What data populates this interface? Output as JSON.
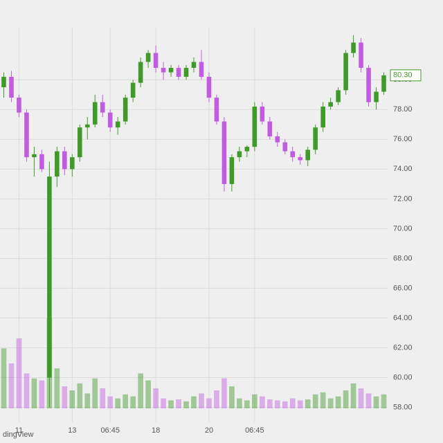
{
  "chart_data": {
    "type": "candlestick",
    "categories": [
      null,
      null,
      "11",
      null,
      null,
      null,
      null,
      null,
      null,
      "13",
      null,
      null,
      null,
      null,
      "06:45",
      null,
      null,
      null,
      null,
      null,
      "18",
      null,
      null,
      null,
      null,
      null,
      null,
      "20",
      null,
      null,
      null,
      null,
      null,
      "06:45",
      null,
      null,
      null,
      null,
      null,
      null,
      null,
      null,
      null,
      null,
      null,
      null,
      null,
      null,
      null,
      null,
      null
    ],
    "open": [
      79.5,
      80.2,
      78.8,
      77.8,
      74.8,
      75,
      60,
      73.5,
      75.2,
      74,
      74.8,
      76.8,
      77,
      78.5,
      77.8,
      76.8,
      77.2,
      78.8,
      79.8,
      81.2,
      81.8,
      80.8,
      80.5,
      80.8,
      80.2,
      80.8,
      81.2,
      80.2,
      78.8,
      77.2,
      73,
      74.8,
      75.2,
      75.5,
      78.2,
      77.2,
      76.2,
      75.8,
      75.2,
      74.8,
      74.6,
      75.3,
      76.8,
      78.2,
      78.5,
      79.3,
      81.8,
      82.5,
      80.8,
      78.5,
      79.2
    ],
    "high": [
      80.5,
      80.6,
      79,
      78,
      75.5,
      75.3,
      74.5,
      75.5,
      75.5,
      75,
      77,
      77.5,
      79,
      79,
      78,
      77.5,
      79,
      80,
      81.5,
      82,
      82.3,
      81.2,
      81,
      81,
      81,
      81.5,
      82,
      80.5,
      79,
      77.5,
      75,
      75.5,
      75.6,
      78.5,
      78.5,
      77.5,
      76.5,
      76,
      75.5,
      75,
      75.5,
      77,
      78.5,
      78.8,
      79.5,
      82,
      83,
      82.8,
      81,
      79.5,
      80.5
    ],
    "low": [
      78.8,
      78.5,
      77.5,
      74.5,
      73.5,
      73.8,
      58,
      72.8,
      73.6,
      73.5,
      74.5,
      76,
      76.8,
      77.5,
      76.5,
      76.3,
      77,
      78.5,
      79.5,
      80.8,
      80.5,
      80,
      80.2,
      80,
      80,
      80.5,
      80,
      78.5,
      77,
      72.5,
      72.5,
      74.5,
      74.8,
      75.2,
      77,
      76,
      75.5,
      75,
      74.5,
      74.3,
      74.2,
      75,
      76.5,
      78,
      78.3,
      79,
      81.5,
      80.5,
      78.2,
      78,
      79
    ],
    "close": [
      80.2,
      78.8,
      77.8,
      74.8,
      75,
      74,
      73.5,
      75.2,
      74,
      74.8,
      76.8,
      77,
      78.5,
      77.8,
      76.8,
      77.2,
      78.8,
      79.8,
      81.2,
      81.8,
      80.8,
      80.5,
      80.8,
      80.2,
      80.8,
      81.2,
      80.2,
      78.8,
      77.2,
      73,
      74.8,
      75.2,
      75.5,
      78.2,
      77.2,
      76.2,
      75.8,
      75.2,
      74.8,
      74.6,
      75.3,
      76.8,
      78.2,
      78.5,
      79.3,
      81.8,
      82.5,
      80.8,
      78.5,
      79.2,
      80.3
    ],
    "volume": [
      60,
      45,
      70,
      35,
      30,
      28,
      90,
      40,
      22,
      18,
      25,
      15,
      30,
      20,
      12,
      10,
      14,
      12,
      35,
      28,
      20,
      10,
      8,
      9,
      7,
      12,
      15,
      10,
      18,
      30,
      22,
      10,
      8,
      14,
      12,
      9,
      8,
      7,
      10,
      8,
      9,
      14,
      16,
      10,
      12,
      18,
      25,
      20,
      15,
      12,
      14
    ],
    "up_color": "#3f9a2a",
    "down_color": "#c15ce0",
    "ylim": [
      57,
      83.5
    ],
    "yticks": [
      {
        "value": 58,
        "label": "58.00"
      },
      {
        "value": 60,
        "label": "60.00"
      },
      {
        "value": 62,
        "label": "62.00"
      },
      {
        "value": 64,
        "label": "64.00"
      },
      {
        "value": 66,
        "label": "66.00"
      },
      {
        "value": 68,
        "label": "68.00"
      },
      {
        "value": 70,
        "label": "70.00"
      },
      {
        "value": 72,
        "label": "72.00"
      },
      {
        "value": 74,
        "label": "74.00"
      },
      {
        "value": 76,
        "label": "76.00"
      },
      {
        "value": 78,
        "label": "78.00"
      },
      {
        "value": 80,
        "label": "80.00"
      }
    ],
    "last_label": "80.30",
    "watermark": "dingView",
    "grid": true
  }
}
